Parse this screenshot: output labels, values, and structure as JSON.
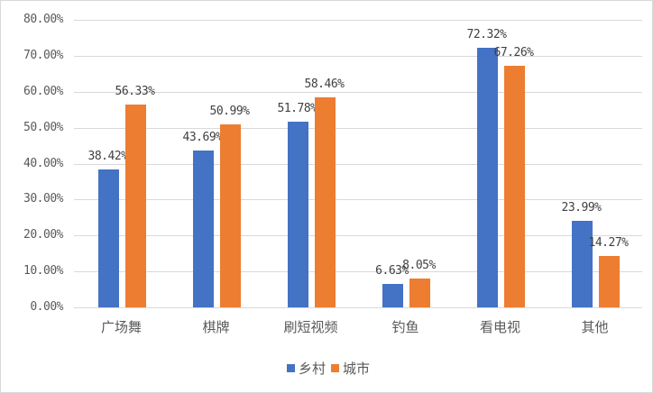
{
  "chart_data": {
    "type": "bar",
    "title": "",
    "xlabel": "",
    "ylabel": "",
    "ylim": [
      0,
      80
    ],
    "yticks": [
      "0.00%",
      "10.00%",
      "20.00%",
      "30.00%",
      "40.00%",
      "50.00%",
      "60.00%",
      "70.00%",
      "80.00%"
    ],
    "grid": true,
    "legend_position": "bottom",
    "categories": [
      "广场舞",
      "棋牌",
      "刷短视频",
      "钓鱼",
      "看电视",
      "其他"
    ],
    "series": [
      {
        "name": "乡村",
        "color": "#4472C4",
        "values": [
          38.42,
          43.69,
          51.78,
          6.63,
          72.32,
          23.99
        ],
        "labels": [
          "38.42%",
          "43.69%",
          "51.78%",
          "6.63%",
          "72.32%",
          "23.99%"
        ]
      },
      {
        "name": "城市",
        "color": "#ED7D31",
        "values": [
          56.33,
          50.99,
          58.46,
          8.05,
          67.26,
          14.27
        ],
        "labels": [
          "56.33%",
          "50.99%",
          "58.46%",
          "8.05%",
          "67.26%",
          "14.27%"
        ]
      }
    ]
  }
}
